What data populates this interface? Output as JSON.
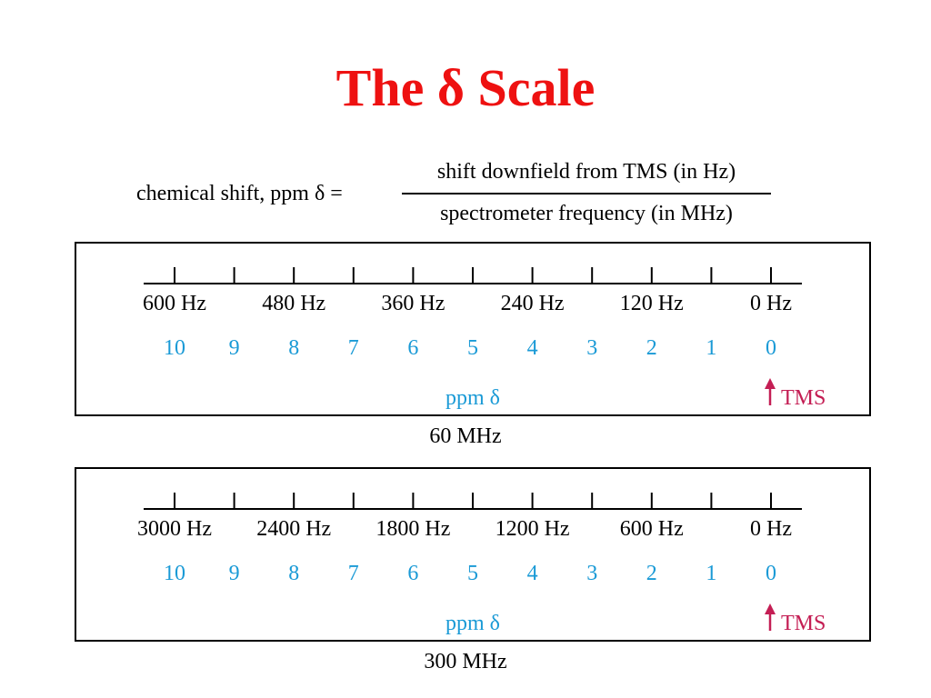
{
  "title": "The δ Scale",
  "formula": {
    "lhs": "chemical shift, ppm δ =",
    "numerator": "shift downfield from TMS (in Hz)",
    "denominator": "spectrometer frequency (in MHz)"
  },
  "colors": {
    "title": "#ee1111",
    "ppm": "#1a9ad6",
    "tms": "#c41e54",
    "text": "#000000"
  },
  "panels": [
    {
      "caption": "60 MHz",
      "hz_labels": [
        "600 Hz",
        "480 Hz",
        "360 Hz",
        "240 Hz",
        "120 Hz",
        "0 Hz"
      ],
      "ppm_labels": [
        "10",
        "9",
        "8",
        "7",
        "6",
        "5",
        "4",
        "3",
        "2",
        "1",
        "0"
      ],
      "ppm_axis_label": "ppm δ",
      "tms_label": "TMS",
      "tms_icon": "up-arrow-icon"
    },
    {
      "caption": "300 MHz",
      "hz_labels": [
        "3000 Hz",
        "2400 Hz",
        "1800 Hz",
        "1200 Hz",
        "600 Hz",
        "0 Hz"
      ],
      "ppm_labels": [
        "10",
        "9",
        "8",
        "7",
        "6",
        "5",
        "4",
        "3",
        "2",
        "1",
        "0"
      ],
      "ppm_axis_label": "ppm δ",
      "tms_label": "TMS",
      "tms_icon": "up-arrow-icon"
    }
  ]
}
